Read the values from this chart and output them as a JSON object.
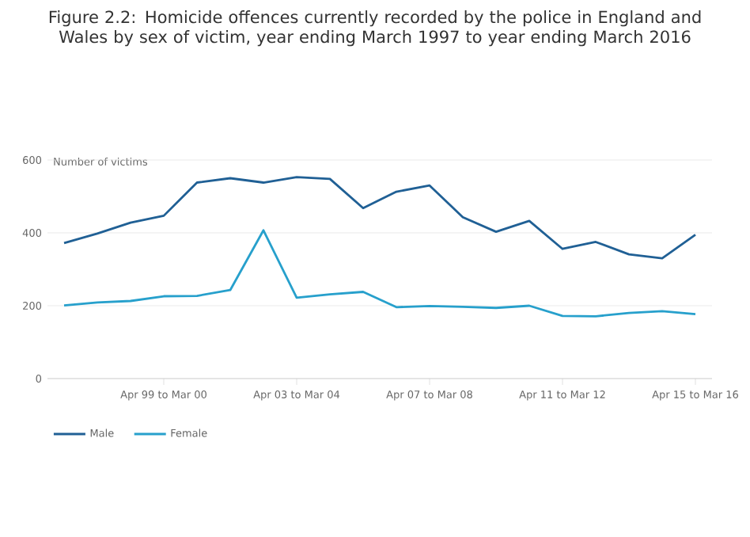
{
  "chart_data": {
    "type": "line",
    "title": "Figure 2.2: Homicide offences currently recorded by the police in England and Wales by sex of victim, year ending March 1997 to year ending March 2016",
    "ylabel": "Number of victims",
    "categories": [
      null,
      null,
      null,
      "Apr 99 to Mar 00",
      null,
      null,
      null,
      "Apr 03 to Mar 04",
      null,
      null,
      null,
      "Apr 07 to Mar 08",
      null,
      null,
      null,
      "Apr 11 to Mar 12",
      null,
      null,
      null,
      "Apr 15 to Mar 16"
    ],
    "series": [
      {
        "name": "Male",
        "color": "#206095",
        "values": [
          372,
          398,
          428,
          447,
          538,
          550,
          538,
          553,
          548,
          468,
          513,
          530,
          443,
          403,
          433,
          356,
          375,
          341,
          330,
          395
        ]
      },
      {
        "name": "Female",
        "color": "#27a0cc",
        "values": [
          201,
          209,
          213,
          226,
          227,
          243,
          407,
          222,
          231,
          238,
          196,
          199,
          197,
          194,
          200,
          172,
          171,
          180,
          185,
          177
        ]
      }
    ],
    "ylim": [
      0,
      600
    ],
    "yticks": [
      0,
      200,
      400,
      600
    ],
    "grid": "y",
    "legend": "bottom left",
    "marker": "none",
    "line_style": "solid"
  }
}
